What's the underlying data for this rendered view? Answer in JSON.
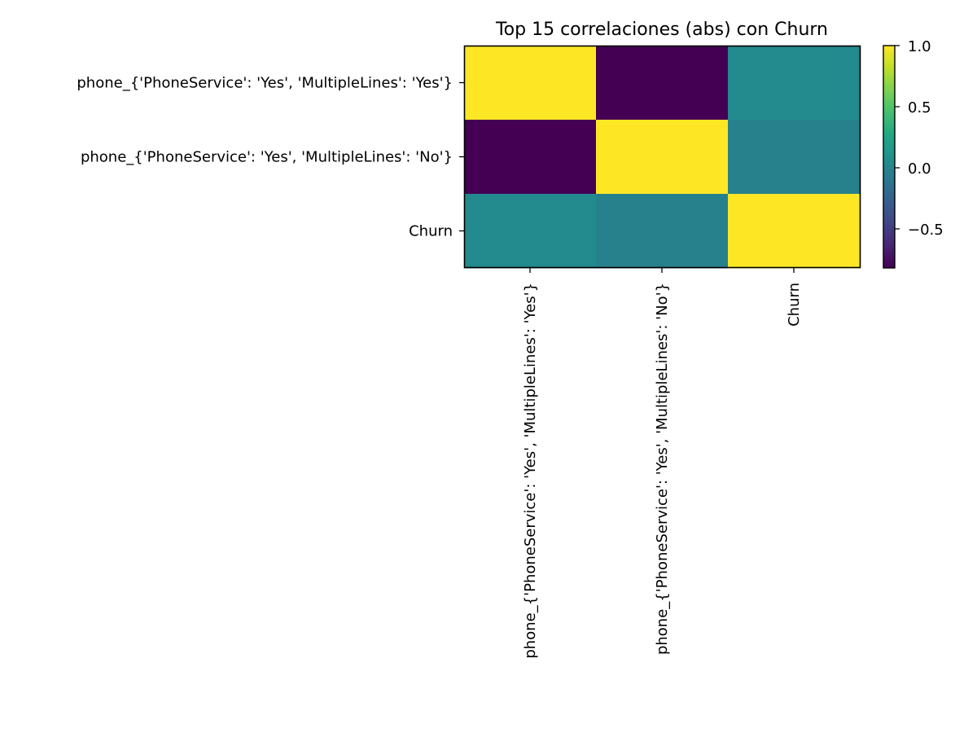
{
  "chart_data": {
    "type": "heatmap",
    "title": "Top 15 correlaciones (abs) con Churn",
    "xlabel": "",
    "ylabel": "",
    "rows": [
      "phone_{'PhoneService': 'Yes', 'MultipleLines': 'Yes'}",
      "phone_{'PhoneService': 'Yes', 'MultipleLines': 'No'}",
      "Churn"
    ],
    "columns": [
      "phone_{'PhoneService': 'Yes', 'MultipleLines': 'Yes'}",
      "phone_{'PhoneService': 'Yes', 'MultipleLines': 'No'}",
      "Churn"
    ],
    "values": [
      [
        1.0,
        -0.82,
        0.04
      ],
      [
        -0.82,
        1.0,
        -0.03
      ],
      [
        0.04,
        -0.03,
        1.0
      ]
    ],
    "colorbar": {
      "colormap": "viridis",
      "range": [
        -0.82,
        1.0
      ],
      "ticks": [
        1.0,
        0.5,
        0.0,
        -0.5
      ],
      "tick_labels": [
        "1.0",
        "0.5",
        "0.0",
        "−0.5"
      ]
    },
    "grid": false
  }
}
